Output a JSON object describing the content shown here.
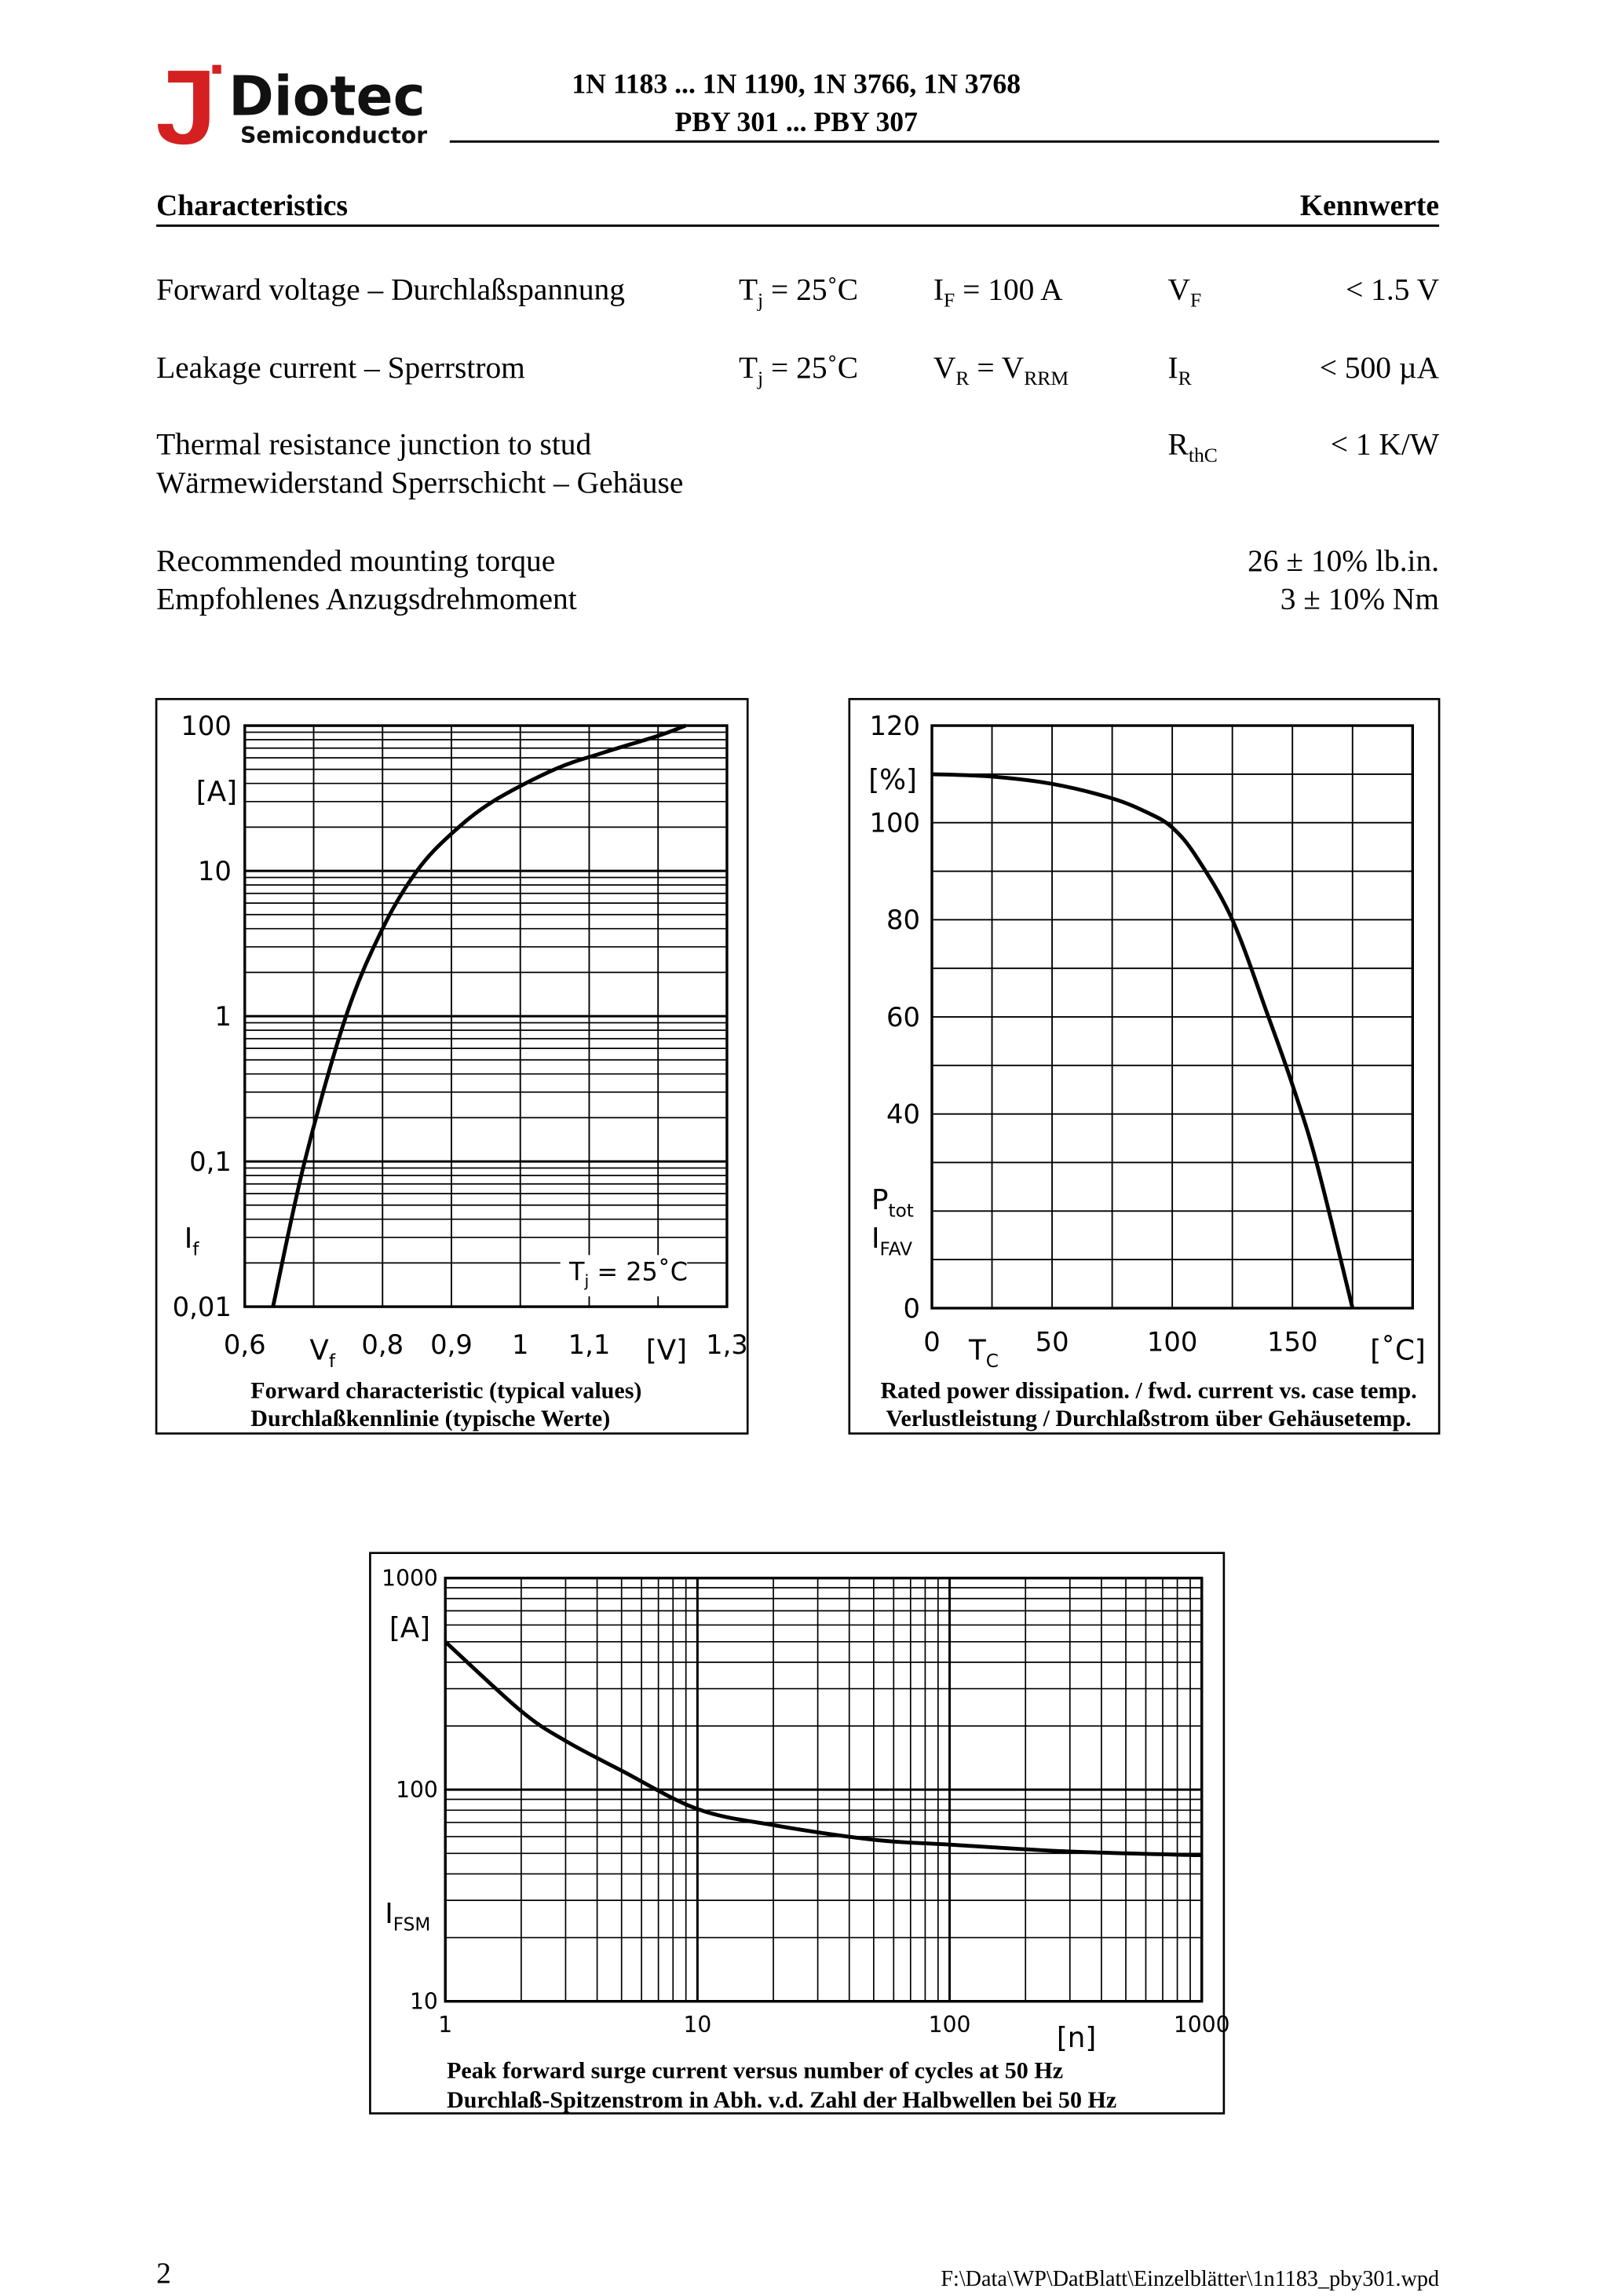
{
  "header": {
    "logo": "Diotec",
    "logo_sub": "Semiconductor",
    "title_lines": [
      "1N 1183 ... 1N 1190, 1N 3766, 1N 3768",
      "PBY 301 ... PBY 307"
    ]
  },
  "section": {
    "title": "Characteristics",
    "title_de": "Kennwerte"
  },
  "rows": [
    {
      "label": [
        "Forward voltage – Durchlaßspannung"
      ],
      "conditions": [
        [
          "T",
          "j",
          " = 25˚C"
        ],
        [
          "I",
          "F",
          " = 100 A"
        ]
      ],
      "symbol": [
        "V",
        "F"
      ],
      "value": [
        "< 1.5 V"
      ]
    },
    {
      "label": [
        "Leakage current – Sperrstrom"
      ],
      "conditions": [
        [
          "T",
          "j",
          " = 25˚C"
        ],
        [
          "V",
          "R",
          " = V",
          "RRM"
        ]
      ],
      "symbol": [
        "I",
        "R"
      ],
      "value": [
        "< 500 µA"
      ]
    },
    {
      "label": [
        "Thermal resistance junction to stud",
        "Wärmewiderstand Sperrschicht – Gehäuse"
      ],
      "symbol": [
        "R",
        "thC"
      ],
      "value": [
        "< 1 K/W"
      ]
    },
    {
      "label": [
        "Recommended mounting torque",
        "Empfohlenes Anzugsdrehmoment"
      ],
      "value": [
        "26 ± 10% lb.in.",
        "3 ± 10% Nm"
      ]
    }
  ],
  "chart_data": [
    {
      "type": "line",
      "xscale": "linear",
      "yscale": "log",
      "color": "#000000",
      "x": [
        0.641,
        0.687,
        0.747,
        0.8,
        0.85,
        0.9,
        0.96,
        1.05,
        1.12,
        1.2,
        1.24
      ],
      "values": [
        0.01,
        0.1,
        1,
        4,
        10,
        18,
        30,
        50,
        65,
        85,
        100
      ],
      "xlim": [
        0.6,
        1.3
      ],
      "ylim": [
        0.01,
        100
      ],
      "xticks": [
        {
          "value": 0.6,
          "label": "0,6"
        },
        {
          "value": 0.8,
          "label": "0,8"
        },
        {
          "value": 0.9,
          "label": "0,9"
        },
        1,
        {
          "value": 1.1,
          "label": "1,1"
        },
        {
          "value": 1.3,
          "label": "1,3"
        }
      ],
      "yticks": [
        {
          "value": 0.01,
          "label": "0,01"
        },
        {
          "value": 0.1,
          "label": "0,1"
        },
        1,
        10,
        100
      ],
      "xgrid": [
        0.6,
        0.7,
        0.8,
        0.9,
        1.0,
        1.1,
        1.2,
        1.3
      ],
      "minor_grid": [
        2,
        3,
        4,
        5,
        6,
        7,
        8,
        9
      ],
      "y_unit": "[A]",
      "y_label": [
        [
          "I",
          "f"
        ]
      ],
      "x_label": [
        "V",
        "f"
      ],
      "x_unit": "[V]",
      "annotation": [
        "T",
        "j",
        " = 25˚C"
      ],
      "caption": [
        "Forward characteristic (typical values)",
        "Durchlaßkennlinie (typische Werte)"
      ]
    },
    {
      "type": "line",
      "xscale": "linear",
      "yscale": "linear",
      "color": "#000000",
      "x": [
        0,
        25,
        50,
        75,
        90,
        100,
        110,
        125,
        140,
        150,
        160,
        175
      ],
      "values": [
        110,
        109.5,
        108,
        105,
        102,
        99,
        93,
        80,
        60,
        46,
        30,
        0
      ],
      "xlim": [
        0,
        200
      ],
      "ylim": [
        0,
        120
      ],
      "xticks": [
        0,
        50,
        100,
        150
      ],
      "yticks": [
        0,
        40,
        60,
        80,
        100,
        120
      ],
      "xgrid": [
        0,
        25,
        50,
        75,
        100,
        125,
        150,
        175,
        200
      ],
      "ygrid": [
        0,
        10,
        20,
        30,
        40,
        50,
        60,
        70,
        80,
        90,
        100,
        110,
        120
      ],
      "y_unit": "[%]",
      "y_label": [
        [
          "P",
          "tot"
        ],
        [
          "I",
          "FAV"
        ]
      ],
      "x_label": [
        "T",
        "C"
      ],
      "x_unit": "[˚C]",
      "caption": [
        "Rated power dissipation. / fwd. current vs. case temp.",
        "Verlustleistung / Durchlaßstrom über Gehäusetemp."
      ]
    },
    {
      "type": "line",
      "xscale": "log",
      "yscale": "log",
      "color": "#000000",
      "x": [
        1,
        2,
        3,
        5,
        10,
        20,
        50,
        100,
        300,
        1000
      ],
      "values": [
        500,
        235,
        170,
        123,
        81,
        68,
        58,
        55,
        51,
        49
      ],
      "xlim": [
        1,
        1000
      ],
      "ylim": [
        10,
        1000
      ],
      "xticks": [
        1,
        10,
        100,
        1000
      ],
      "yticks": [
        10,
        100,
        1000
      ],
      "minor_grid": [
        2,
        3,
        4,
        5,
        6,
        7,
        8,
        9
      ],
      "y_unit": "[A]",
      "y_label": [
        [
          "I",
          "FSM"
        ]
      ],
      "x_unit": "[n]",
      "caption": [
        "Peak forward surge current versus number of cycles at 50 Hz",
        "Durchlaß-Spitzenstrom in Abh. v.d. Zahl der Halbwellen bei 50 Hz"
      ]
    }
  ],
  "footer": {
    "page": "2",
    "file": "F:\\Data\\WP\\DatBlatt\\Einzelblätter\\1n1183_pby301.wpd"
  }
}
